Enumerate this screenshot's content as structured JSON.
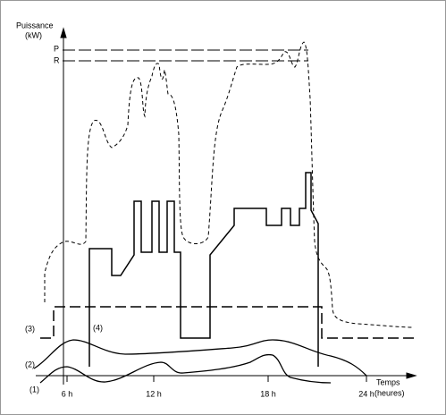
{
  "axis": {
    "y_title": "Puissance",
    "y_unit": "(kW)",
    "x_title": "Temps",
    "x_unit": "(heures)",
    "levels": [
      "P",
      "R"
    ],
    "x_ticks": [
      "6 h",
      "12 h",
      "18 h",
      "24 h"
    ]
  },
  "curves": [
    "(1)",
    "(2)",
    "(3)",
    "(4)"
  ]
}
